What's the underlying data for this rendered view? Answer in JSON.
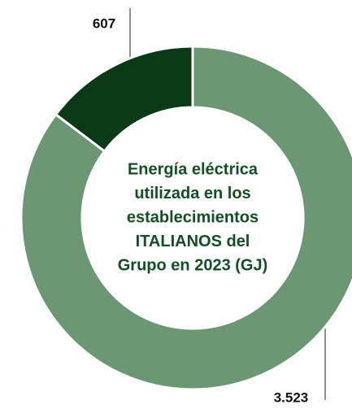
{
  "chart_data": {
    "type": "donut",
    "title": [
      "Energía eléctrica",
      "utilizada en los",
      "establecimientos",
      "ITALIANOS del",
      "Grupo en 2023 (GJ)"
    ],
    "values": [
      3523,
      607
    ],
    "value_labels": [
      "3.523",
      "607"
    ],
    "colors": [
      "#6b9873",
      "#0a3a15"
    ]
  }
}
